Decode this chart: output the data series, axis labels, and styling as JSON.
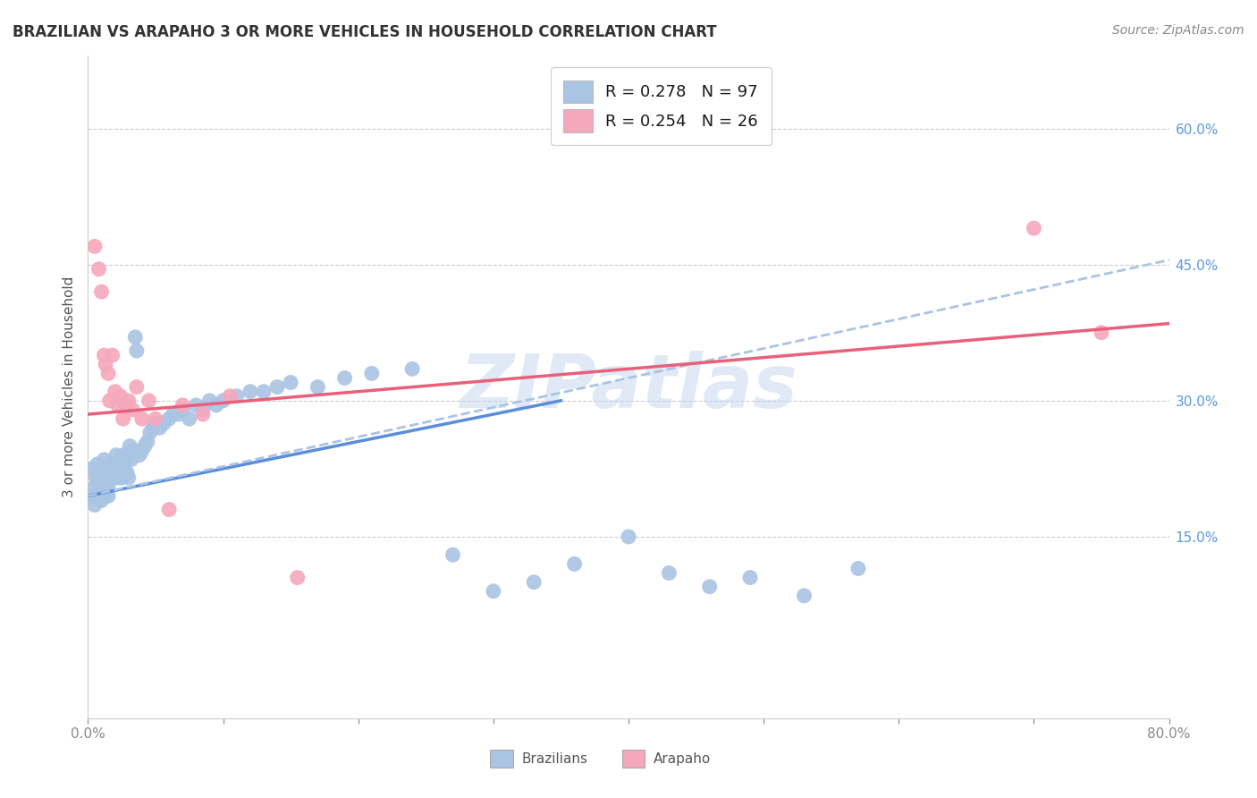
{
  "title": "BRAZILIAN VS ARAPAHO 3 OR MORE VEHICLES IN HOUSEHOLD CORRELATION CHART",
  "source": "Source: ZipAtlas.com",
  "ylabel": "3 or more Vehicles in Household",
  "xlim": [
    0.0,
    0.8
  ],
  "ylim": [
    -0.05,
    0.68
  ],
  "xticks": [
    0.0,
    0.1,
    0.2,
    0.3,
    0.4,
    0.5,
    0.6,
    0.7,
    0.8
  ],
  "xtick_labels": [
    "0.0%",
    "",
    "",
    "",
    "",
    "",
    "",
    "",
    "80.0%"
  ],
  "yticks_right": [
    0.15,
    0.3,
    0.45,
    0.6
  ],
  "ytick_labels_right": [
    "15.0%",
    "30.0%",
    "45.0%",
    "60.0%"
  ],
  "blue_color": "#aac4e4",
  "pink_color": "#f5a8bc",
  "blue_line_color": "#5b8dd9",
  "pink_line_color": "#e8607a",
  "legend_blue_label": "R = 0.278   N = 97",
  "legend_pink_label": "R = 0.254   N = 26",
  "watermark": "ZIPatlas",
  "background_color": "#ffffff",
  "blue_scatter_x": [
    0.003,
    0.004,
    0.005,
    0.005,
    0.006,
    0.007,
    0.007,
    0.008,
    0.008,
    0.009,
    0.009,
    0.01,
    0.01,
    0.01,
    0.01,
    0.011,
    0.011,
    0.011,
    0.012,
    0.012,
    0.012,
    0.013,
    0.013,
    0.013,
    0.014,
    0.014,
    0.014,
    0.015,
    0.015,
    0.015,
    0.015,
    0.016,
    0.016,
    0.017,
    0.017,
    0.018,
    0.018,
    0.019,
    0.019,
    0.02,
    0.02,
    0.021,
    0.022,
    0.022,
    0.023,
    0.023,
    0.024,
    0.025,
    0.025,
    0.026,
    0.027,
    0.028,
    0.029,
    0.03,
    0.031,
    0.032,
    0.033,
    0.035,
    0.036,
    0.038,
    0.04,
    0.042,
    0.044,
    0.046,
    0.048,
    0.05,
    0.053,
    0.056,
    0.06,
    0.063,
    0.067,
    0.07,
    0.075,
    0.08,
    0.085,
    0.09,
    0.095,
    0.1,
    0.11,
    0.12,
    0.13,
    0.14,
    0.15,
    0.17,
    0.19,
    0.21,
    0.24,
    0.27,
    0.3,
    0.33,
    0.36,
    0.4,
    0.43,
    0.46,
    0.49,
    0.53,
    0.57
  ],
  "blue_scatter_y": [
    0.225,
    0.195,
    0.205,
    0.185,
    0.215,
    0.195,
    0.23,
    0.21,
    0.2,
    0.215,
    0.22,
    0.225,
    0.21,
    0.2,
    0.19,
    0.215,
    0.205,
    0.225,
    0.235,
    0.2,
    0.215,
    0.22,
    0.21,
    0.195,
    0.215,
    0.225,
    0.2,
    0.22,
    0.215,
    0.205,
    0.195,
    0.22,
    0.225,
    0.215,
    0.23,
    0.225,
    0.215,
    0.22,
    0.225,
    0.215,
    0.225,
    0.24,
    0.225,
    0.22,
    0.23,
    0.215,
    0.22,
    0.235,
    0.215,
    0.24,
    0.225,
    0.235,
    0.22,
    0.215,
    0.25,
    0.235,
    0.245,
    0.37,
    0.355,
    0.24,
    0.245,
    0.25,
    0.255,
    0.265,
    0.27,
    0.275,
    0.27,
    0.275,
    0.28,
    0.285,
    0.285,
    0.29,
    0.28,
    0.295,
    0.29,
    0.3,
    0.295,
    0.3,
    0.305,
    0.31,
    0.31,
    0.315,
    0.32,
    0.315,
    0.325,
    0.33,
    0.335,
    0.13,
    0.09,
    0.1,
    0.12,
    0.15,
    0.11,
    0.095,
    0.105,
    0.085,
    0.115
  ],
  "pink_scatter_x": [
    0.005,
    0.008,
    0.01,
    0.012,
    0.013,
    0.015,
    0.016,
    0.018,
    0.02,
    0.022,
    0.024,
    0.026,
    0.028,
    0.03,
    0.033,
    0.036,
    0.04,
    0.045,
    0.05,
    0.06,
    0.07,
    0.085,
    0.105,
    0.155,
    0.7,
    0.75
  ],
  "pink_scatter_y": [
    0.47,
    0.445,
    0.42,
    0.35,
    0.34,
    0.33,
    0.3,
    0.35,
    0.31,
    0.295,
    0.305,
    0.28,
    0.295,
    0.3,
    0.29,
    0.315,
    0.28,
    0.3,
    0.28,
    0.18,
    0.295,
    0.285,
    0.305,
    0.105,
    0.49,
    0.375
  ],
  "blue_trendline_x": [
    0.0,
    0.35
  ],
  "blue_trendline_y": [
    0.195,
    0.3
  ],
  "pink_trendline_x": [
    0.0,
    0.8
  ],
  "pink_trendline_y": [
    0.285,
    0.385
  ],
  "blue_dash_trendline_x": [
    0.0,
    0.8
  ],
  "blue_dash_trendline_y": [
    0.195,
    0.455
  ]
}
